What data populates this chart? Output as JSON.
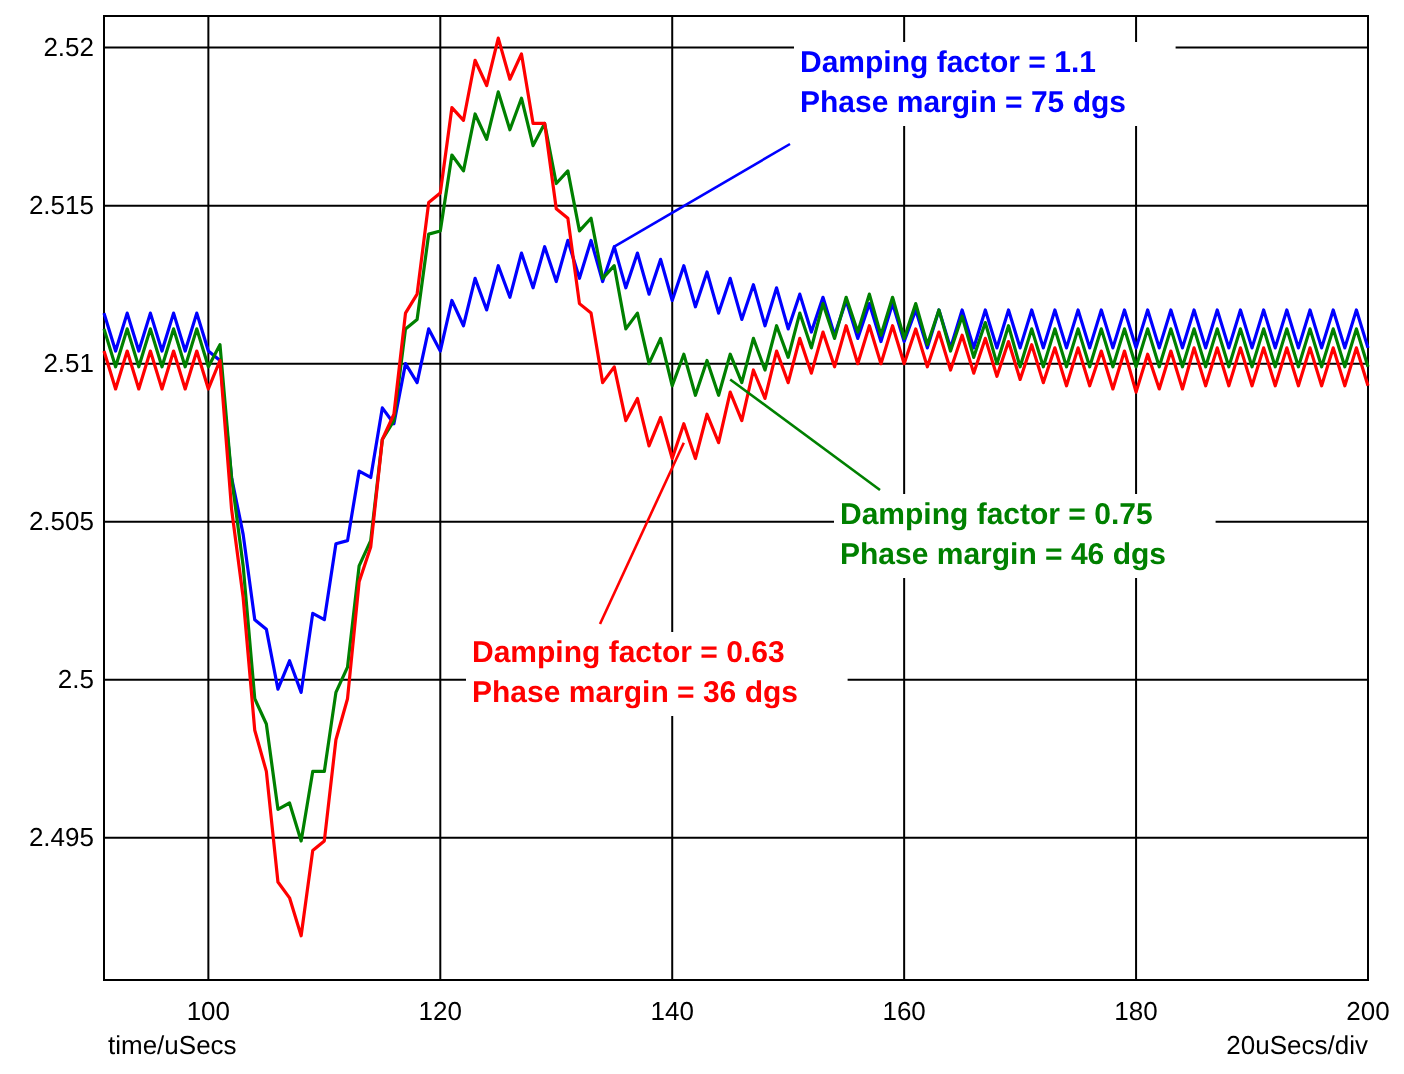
{
  "chart_data": {
    "type": "line",
    "xlabel": "time/uSecs",
    "xlim": [
      91,
      200
    ],
    "ylim": [
      2.4905,
      2.521
    ],
    "xticks": [
      100,
      120,
      140,
      160,
      180,
      200
    ],
    "yticks": [
      {
        "value": 2.495,
        "label": "2.495"
      },
      {
        "value": 2.5,
        "label": "2.5"
      },
      {
        "value": 2.505,
        "label": "2.505"
      },
      {
        "value": 2.51,
        "label": "2.51"
      },
      {
        "value": 2.515,
        "label": "2.515"
      },
      {
        "value": 2.52,
        "label": "2.52"
      }
    ],
    "grid": true,
    "marker": "none",
    "line_style": "solid",
    "x": [
      91,
      92,
      93,
      94,
      95,
      96,
      97,
      98,
      99,
      100,
      101,
      102,
      103,
      104,
      105,
      106,
      107,
      108,
      109,
      110,
      111,
      112,
      113,
      114,
      115,
      116,
      117,
      118,
      119,
      120,
      121,
      122,
      123,
      124,
      125,
      126,
      127,
      128,
      129,
      130,
      131,
      132,
      133,
      134,
      135,
      136,
      137,
      138,
      139,
      140,
      141,
      142,
      143,
      144,
      145,
      146,
      147,
      148,
      149,
      150,
      151,
      152,
      153,
      154,
      155,
      156,
      157,
      158,
      159,
      160,
      161,
      162,
      163,
      164,
      165,
      166,
      167,
      168,
      169,
      170,
      171,
      172,
      173,
      174,
      175,
      176,
      177,
      178,
      179,
      180,
      181,
      182,
      183,
      184,
      185,
      186,
      187,
      188,
      189,
      190,
      191,
      192,
      193,
      194,
      195,
      196,
      197,
      198,
      199,
      200
    ],
    "series": [
      {
        "color": "#0000ff",
        "values": [
          2.5116,
          2.5104,
          2.5116,
          2.5104,
          2.5116,
          2.5104,
          2.5116,
          2.5104,
          2.5116,
          2.5104,
          2.5101,
          2.5064,
          2.5046,
          2.5019,
          2.5016,
          2.4997,
          2.5006,
          2.4996,
          2.5021,
          2.5019,
          2.5043,
          2.5044,
          2.5066,
          2.5064,
          2.5086,
          2.5081,
          2.51,
          2.5094,
          2.5111,
          2.5104,
          2.512,
          2.5112,
          2.5127,
          2.5117,
          2.5131,
          2.5121,
          2.5135,
          2.5124,
          2.5137,
          2.5126,
          2.5139,
          2.5127,
          2.5139,
          2.5126,
          2.5137,
          2.5124,
          2.5135,
          2.5122,
          2.5133,
          2.512,
          2.5131,
          2.5118,
          2.5129,
          2.5116,
          2.5127,
          2.5114,
          2.5125,
          2.5112,
          2.5124,
          2.5111,
          2.5122,
          2.511,
          2.5121,
          2.5109,
          2.512,
          2.5108,
          2.5119,
          2.5107,
          2.5119,
          2.5107,
          2.5117,
          2.5105,
          2.5117,
          2.5105,
          2.5117,
          2.5105,
          2.5117,
          2.5105,
          2.5117,
          2.5105,
          2.5117,
          2.5105,
          2.5117,
          2.5105,
          2.5117,
          2.5105,
          2.5117,
          2.5105,
          2.5117,
          2.5105,
          2.5117,
          2.5105,
          2.5117,
          2.5105,
          2.5117,
          2.5105,
          2.5117,
          2.5105,
          2.5117,
          2.5105,
          2.5117,
          2.5105,
          2.5117,
          2.5105,
          2.5117,
          2.5105,
          2.5117,
          2.5105,
          2.5117,
          2.5105
        ]
      },
      {
        "color": "#008000",
        "values": [
          2.5111,
          2.5099,
          2.5111,
          2.5099,
          2.5111,
          2.5099,
          2.5111,
          2.5099,
          2.5111,
          2.5099,
          2.5106,
          2.5064,
          2.5036,
          2.4994,
          2.4986,
          2.4959,
          2.4961,
          2.4949,
          2.4971,
          2.4971,
          2.4996,
          2.5004,
          2.5036,
          2.5044,
          2.5076,
          2.5082,
          2.5111,
          2.5114,
          2.5141,
          2.5142,
          2.5166,
          2.5161,
          2.5179,
          2.5171,
          2.5186,
          2.5174,
          2.5184,
          2.5169,
          2.5176,
          2.5157,
          2.5161,
          2.5142,
          2.5146,
          2.5127,
          2.5131,
          2.5111,
          2.5116,
          2.51,
          2.5108,
          2.5093,
          2.5103,
          2.509,
          2.5101,
          2.509,
          2.5103,
          2.5094,
          2.5108,
          2.5098,
          2.5112,
          2.5102,
          2.5116,
          2.5105,
          2.5119,
          2.5108,
          2.5121,
          2.511,
          2.5122,
          2.5109,
          2.5121,
          2.5108,
          2.5119,
          2.5106,
          2.5117,
          2.5104,
          2.5115,
          2.5102,
          2.5113,
          2.51,
          2.5112,
          2.5099,
          2.5111,
          2.5099,
          2.5111,
          2.5099,
          2.5111,
          2.5099,
          2.5111,
          2.5099,
          2.5111,
          2.5099,
          2.5111,
          2.5099,
          2.5111,
          2.5099,
          2.5111,
          2.5099,
          2.5111,
          2.5099,
          2.5111,
          2.5099,
          2.5111,
          2.5099,
          2.5111,
          2.5099,
          2.5111,
          2.5099,
          2.5111,
          2.5099,
          2.5111,
          2.5099
        ]
      },
      {
        "color": "#ff0000",
        "values": [
          2.5104,
          2.5092,
          2.5104,
          2.5092,
          2.5104,
          2.5092,
          2.5104,
          2.5092,
          2.5104,
          2.5092,
          2.5101,
          2.5054,
          2.5026,
          2.4984,
          2.4971,
          2.4936,
          2.4931,
          2.4919,
          2.4946,
          2.4949,
          2.4981,
          2.4994,
          2.5031,
          2.5042,
          2.5076,
          2.5084,
          2.5116,
          2.5122,
          2.5151,
          2.5154,
          2.5181,
          2.5177,
          2.5196,
          2.5188,
          2.5203,
          2.519,
          2.5198,
          2.5176,
          2.5176,
          2.5149,
          2.5146,
          2.5119,
          2.5116,
          2.5094,
          2.5099,
          2.5082,
          2.5089,
          2.5074,
          2.5083,
          2.507,
          2.5081,
          2.507,
          2.5084,
          2.5075,
          2.5091,
          2.5082,
          2.5098,
          2.5089,
          2.5104,
          2.5094,
          2.5108,
          2.5097,
          2.511,
          2.5099,
          2.5112,
          2.51,
          2.5112,
          2.51,
          2.5112,
          2.51,
          2.5111,
          2.5099,
          2.511,
          2.5098,
          2.5109,
          2.5097,
          2.5108,
          2.5096,
          2.5107,
          2.5095,
          2.5106,
          2.5094,
          2.5105,
          2.5093,
          2.5105,
          2.5093,
          2.5104,
          2.5092,
          2.5104,
          2.5091,
          2.5103,
          2.5092,
          2.5104,
          2.5092,
          2.5105,
          2.5093,
          2.5105,
          2.5093,
          2.5105,
          2.5093,
          2.5105,
          2.5093,
          2.5105,
          2.5093,
          2.5105,
          2.5093,
          2.5105,
          2.5093,
          2.5105,
          2.5093
        ]
      }
    ],
    "annotations": [
      {
        "text": "Damping factor = 1.1\nPhase margin = 75 dgs",
        "x": 135,
        "y": 2.5137
      },
      {
        "text": "Damping factor = 0.75\nPhase margin = 46 dgs",
        "x": 145,
        "y": 2.5095
      },
      {
        "text": "Damping factor = 0.63\nPhase margin = 36 dgs",
        "x": 141,
        "y": 2.5075
      },
      "20uSecs/div"
    ]
  }
}
